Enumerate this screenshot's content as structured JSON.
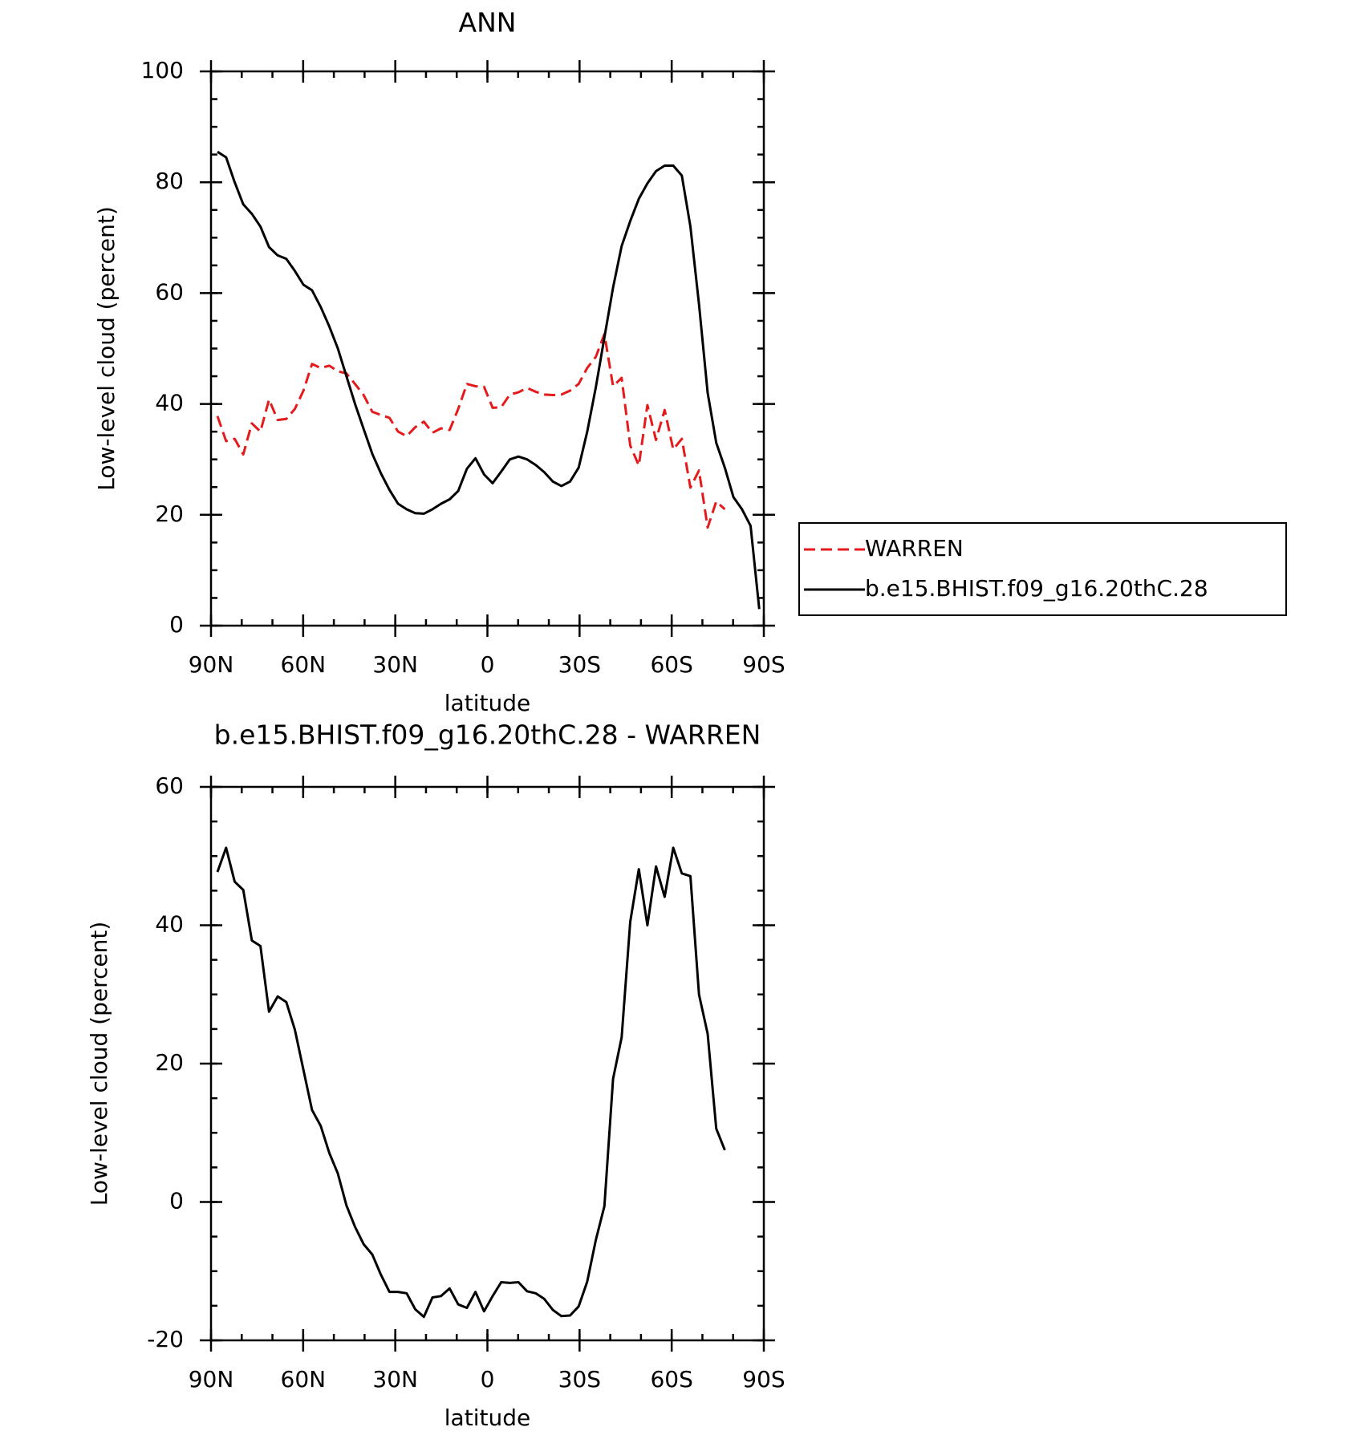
{
  "chart_data": [
    {
      "type": "line",
      "title": "ANN",
      "xlabel": "latitude",
      "ylabel": "Low-level cloud (percent)",
      "x": [
        87.9,
        85.1,
        82.3,
        79.5,
        76.7,
        73.9,
        71.1,
        68.3,
        65.5,
        62.7,
        59.9,
        57.1,
        54.3,
        51.5,
        48.7,
        45.9,
        43.1,
        40.3,
        37.5,
        34.7,
        31.9,
        29.1,
        26.3,
        23.5,
        20.7,
        17.9,
        15.1,
        12.3,
        9.5,
        6.7,
        3.9,
        1.1,
        -1.7,
        -4.5,
        -7.3,
        -10.1,
        -12.9,
        -15.7,
        -18.5,
        -21.3,
        -24.1,
        -26.9,
        -29.7,
        -32.5,
        -35.3,
        -38.1,
        -40.9,
        -43.7,
        -46.5,
        -49.3,
        -52.1,
        -54.9,
        -57.7,
        -60.5,
        -63.3,
        -66.1,
        -68.9,
        -71.7,
        -74.5,
        -77.3,
        -80.1,
        -82.9,
        -85.7,
        -88.5
      ],
      "series": [
        {
          "name": "WARREN",
          "color": "#e41a1c",
          "dashed": true,
          "values": [
            37.8,
            33.3,
            33.7,
            30.9,
            36.5,
            35,
            40.8,
            37.1,
            37.3,
            39.1,
            42.4,
            47.2,
            46.5,
            46.9,
            45.9,
            45.5,
            43.6,
            41.6,
            38.6,
            38,
            37.5,
            35,
            34.2,
            35.8,
            36.8,
            34.8,
            35.6,
            35.3,
            39.1,
            43.6,
            43.2,
            43.1,
            39.3,
            39.4,
            41.7,
            42.1,
            42.9,
            42.2,
            41.7,
            41.6,
            41.7,
            42.4,
            43.6,
            46.5,
            48.5,
            52.6,
            43.2,
            44.7,
            32.5,
            28.9,
            39.8,
            33.5,
            38.9,
            31.8,
            33.7,
            24.9,
            28,
            17.7,
            22.4,
            21,
            null,
            null,
            null,
            null
          ]
        },
        {
          "name": "b.e15.BHIST.f09_g16.20thC.28",
          "color": "#000000",
          "dashed": false,
          "values": [
            85.5,
            84.5,
            80,
            76,
            74.3,
            72,
            68.3,
            66.8,
            66.2,
            64,
            61.5,
            60.5,
            57.5,
            54,
            50,
            45,
            40,
            35.5,
            31,
            27.5,
            24.5,
            22,
            21,
            20.3,
            20.2,
            21,
            22,
            22.8,
            24.3,
            28.3,
            30.2,
            27.3,
            25.7,
            27.8,
            30,
            30.5,
            30,
            29,
            27.7,
            26,
            25.2,
            26,
            28.5,
            35,
            43,
            52,
            61,
            68.5,
            73,
            77,
            79.8,
            82,
            83,
            83,
            81.2,
            72,
            58,
            42,
            33,
            28.5,
            23.2,
            21,
            18,
            3
          ]
        }
      ],
      "xlim": [
        90,
        -90
      ],
      "xticks": [
        {
          "value": 90,
          "label": "90N"
        },
        {
          "value": 60,
          "label": "60N"
        },
        {
          "value": 30,
          "label": "30N"
        },
        0,
        {
          "value": -30,
          "label": "30S"
        },
        {
          "value": -60,
          "label": "60S"
        },
        {
          "value": -90,
          "label": "90S"
        }
      ],
      "x_minor_step": 10,
      "ylim": [
        0,
        100
      ],
      "yticks": [
        0,
        20,
        40,
        60,
        80,
        100
      ],
      "y_minor_step": 5,
      "legend": "outside-right"
    },
    {
      "type": "line",
      "title": "b.e15.BHIST.f09_g16.20thC.28 - WARREN",
      "xlabel": "latitude",
      "ylabel": "Low-level cloud (percent)",
      "x": [
        87.9,
        85.1,
        82.3,
        79.5,
        76.7,
        73.9,
        71.1,
        68.3,
        65.5,
        62.7,
        59.9,
        57.1,
        54.3,
        51.5,
        48.7,
        45.9,
        43.1,
        40.3,
        37.5,
        34.7,
        31.9,
        29.1,
        26.3,
        23.5,
        20.7,
        17.9,
        15.1,
        12.3,
        9.5,
        6.7,
        3.9,
        1.1,
        -1.7,
        -4.5,
        -7.3,
        -10.1,
        -12.9,
        -15.7,
        -18.5,
        -21.3,
        -24.1,
        -26.9,
        -29.7,
        -32.5,
        -35.3,
        -38.1,
        -40.9,
        -43.7,
        -46.5,
        -49.3,
        -52.1,
        -54.9,
        -57.7,
        -60.5,
        -63.3,
        -66.1,
        -68.9,
        -71.7,
        -74.5,
        -77.3,
        -80.1,
        -82.9,
        -85.7,
        -88.5
      ],
      "series": [
        {
          "color": "#000000",
          "dashed": false,
          "values": [
            47.7,
            51.2,
            46.3,
            45.1,
            37.8,
            37,
            27.5,
            29.7,
            28.9,
            24.9,
            19.1,
            13.3,
            11,
            7.1,
            4.1,
            -0.5,
            -3.6,
            -6.1,
            -7.6,
            -10.5,
            -13,
            -13,
            -13.2,
            -15.5,
            -16.6,
            -13.8,
            -13.6,
            -12.5,
            -14.8,
            -15.3,
            -13,
            -15.8,
            -13.6,
            -11.6,
            -11.7,
            -11.6,
            -12.9,
            -13.2,
            -14,
            -15.6,
            -16.5,
            -16.4,
            -15.1,
            -11.5,
            -5.5,
            -0.6,
            17.8,
            23.8,
            40.5,
            48.1,
            40,
            48.5,
            44.1,
            51.2,
            47.5,
            47.1,
            30,
            24.3,
            10.6,
            7.5,
            null,
            null,
            null,
            null
          ]
        }
      ],
      "xlim": [
        90,
        -90
      ],
      "xticks": [
        {
          "value": 90,
          "label": "90N"
        },
        {
          "value": 60,
          "label": "60N"
        },
        {
          "value": 30,
          "label": "30N"
        },
        0,
        {
          "value": -30,
          "label": "30S"
        },
        {
          "value": -60,
          "label": "60S"
        },
        {
          "value": -90,
          "label": "90S"
        }
      ],
      "x_minor_step": 10,
      "ylim": [
        -20,
        60
      ],
      "yticks": [
        -20,
        0,
        20,
        40,
        60
      ],
      "y_minor_step": 5
    }
  ]
}
